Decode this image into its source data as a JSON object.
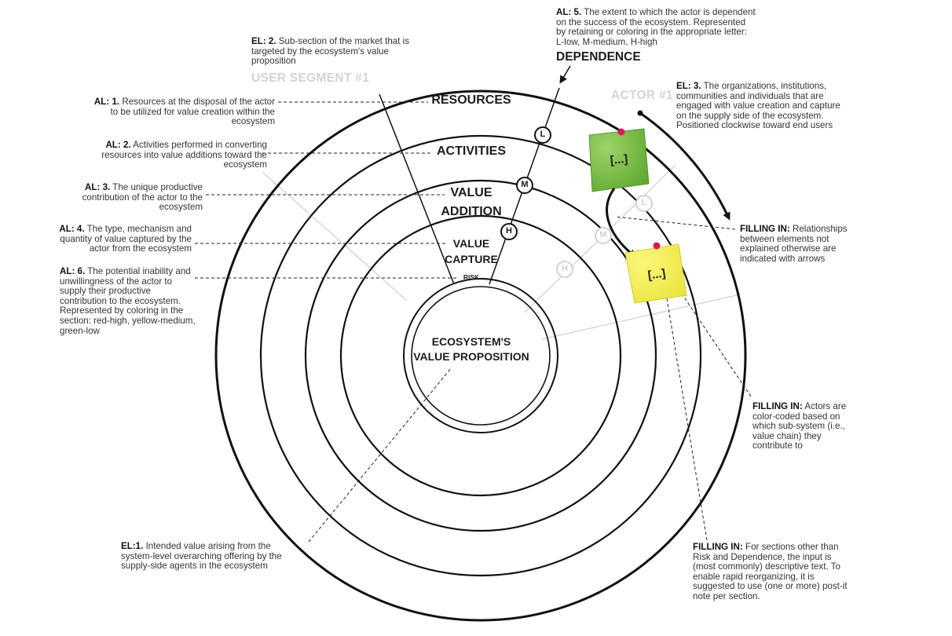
{
  "rings": {
    "resources": "RESOURCES",
    "activities": "ACTIVITIES",
    "value_addition_1": "VALUE",
    "value_addition_2": "ADDITION",
    "value_capture_1": "VALUE",
    "value_capture_2": "CAPTURE",
    "risk": "RISK",
    "center_1": "ECOSYSTEM'S",
    "center_2": "VALUE PROPOSITION"
  },
  "ghost_labels": {
    "user_segment": "USER SEGMENT #1",
    "actor": "ACTOR #1"
  },
  "dependence": {
    "title": "DEPENDENCE",
    "markers": [
      "L",
      "M",
      "H"
    ]
  },
  "notes": {
    "green": "[...]",
    "yellow": "[...]"
  },
  "annotations": {
    "al1": {
      "key": "AL: 1.",
      "text": " Resources at the disposal of the actor to be utilized for value creation within the ecosystem"
    },
    "al2": {
      "key": "AL: 2.",
      "text": " Activities performed in converting resources into value additions toward the ecosystem"
    },
    "al3": {
      "key": "AL: 3.",
      "text": " The unique productive contribution of the actor to the ecosystem"
    },
    "al4": {
      "key": "AL: 4.",
      "text": " The type, mechanism and quantity of value captured by the actor from the ecosystem"
    },
    "al6": {
      "key": "AL: 6.",
      "text": " The potential inability and unwillingness of the actor to supply their productive contribution to the ecosystem. Represented by coloring in the section: red-high, yellow-medium, green-low"
    },
    "el1": {
      "key": "EL:1.",
      "text": " Intended value arising from the system-level overarching offering by the supply-side agents in the ecosystem"
    },
    "el2": {
      "key": "EL: 2.",
      "text": " Sub-section of the market that is targeted by the ecosystem's value proposition"
    },
    "al5": {
      "key": "AL: 5.",
      "text": " The extent to which the actor is dependent on the success of the ecosystem. Represented by retaining or coloring in the appropriate letter: L-low, M-medium, H-high"
    },
    "el3": {
      "key": "EL: 3.",
      "text": " The organizations, institutions, communities and individuals that are engaged with value creation and capture on the supply side of the ecosystem. Positioned clockwise toward end users"
    },
    "fill1": {
      "key": "FILLING IN:",
      "text": " Relationships between elements not explained otherwise are indicated with arrows"
    },
    "fill2": {
      "key": "FILLING IN:",
      "text": " Actors are color-coded based on which sub-system (i.e., value chain) they contribute to"
    },
    "fill3": {
      "key": "FILLING IN:",
      "text": " For sections other than Risk and Dependence, the input is (most commonly) descriptive text. To enable rapid reorganizing, it is suggested to use (one or more) post-it note per section."
    }
  },
  "colors": {
    "green_note": "#6dba35",
    "yellow_note": "#f3ee4a",
    "pin": "#d81a5c",
    "ghost_text": "#d4d4d4",
    "ring": "#111111"
  }
}
